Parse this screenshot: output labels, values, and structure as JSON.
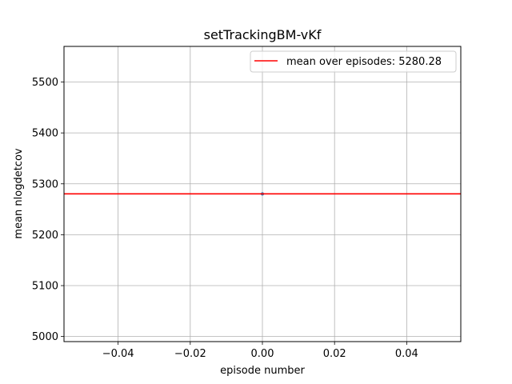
{
  "chart_data": {
    "type": "line",
    "title": "setTrackingBM-vKf",
    "xlabel": "episode number",
    "ylabel": "mean nlogdetcov",
    "xlim": [
      -0.055,
      0.055
    ],
    "ylim": [
      4990,
      5570
    ],
    "xticks": [
      -0.04,
      -0.02,
      0.0,
      0.02,
      0.04
    ],
    "xtick_labels": [
      "−0.04",
      "−0.02",
      "0.00",
      "0.02",
      "0.04"
    ],
    "yticks": [
      5000,
      5100,
      5200,
      5300,
      5400,
      5500
    ],
    "ytick_labels": [
      "5000",
      "5100",
      "5200",
      "5300",
      "5400",
      "5500"
    ],
    "grid": true,
    "legend_position": "top-right",
    "series": [
      {
        "type": "scatter",
        "x": [
          0.0
        ],
        "y": [
          5280.28
        ],
        "color": "#1f77b4"
      },
      {
        "name": "mean over episodes: 5280.28",
        "type": "hline",
        "y": 5280.28,
        "color": "#ff0000"
      }
    ]
  }
}
